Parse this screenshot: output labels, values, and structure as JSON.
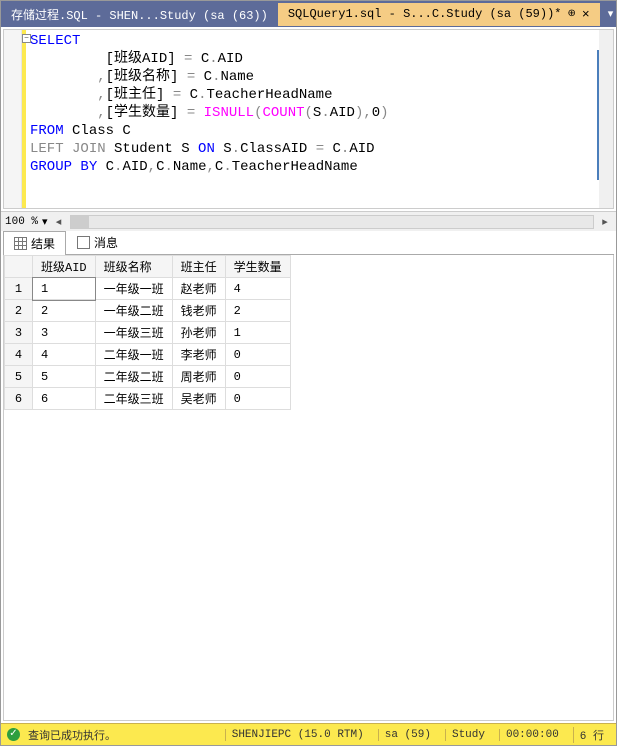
{
  "tabs": {
    "inactive_label": "存储过程.SQL - SHEN...Study (sa (63))",
    "active_label": "SQLQuery1.sql - S...C.Study (sa (59))*"
  },
  "code": {
    "l1a": "SELECT",
    "l2a": "         [班级AID] ",
    "l2b": "=",
    "l2c": " C",
    "l2d": ".",
    "l2e": "AID",
    "l3a": "        ",
    "l3b": ",",
    "l3c": "[班级名称] ",
    "l3d": "=",
    "l3e": " C",
    "l3f": ".",
    "l3g": "Name",
    "l4a": "        ",
    "l4b": ",",
    "l4c": "[班主任] ",
    "l4d": "=",
    "l4e": " C",
    "l4f": ".",
    "l4g": "TeacherHeadName",
    "l5a": "        ",
    "l5b": ",",
    "l5c": "[学生数量] ",
    "l5d": "=",
    "l5e": " ",
    "l5f": "ISNULL",
    "l5g": "(",
    "l5h": "COUNT",
    "l5i": "(",
    "l5j": "S",
    "l5k": ".",
    "l5l": "AID",
    "l5m": ")",
    "l5n": ",",
    "l5o": "0",
    "l5p": ")",
    "l6a": "FROM",
    "l6b": " Class C",
    "l7a": "LEFT",
    "l7b": " ",
    "l7c": "JOIN",
    "l7d": " Student S ",
    "l7e": "ON",
    "l7f": " S",
    "l7g": ".",
    "l7h": "ClassAID ",
    "l7i": "=",
    "l7j": " C",
    "l7k": ".",
    "l7l": "AID",
    "l8a": "GROUP",
    "l8b": " ",
    "l8c": "BY",
    "l8d": " C",
    "l8e": ".",
    "l8f": "AID",
    "l8g": ",",
    "l8h": "C",
    "l8i": ".",
    "l8j": "Name",
    "l8k": ",",
    "l8l": "C",
    "l8m": ".",
    "l8n": "TeacherHeadName"
  },
  "zoom": {
    "pct": "100 %"
  },
  "result_tabs": {
    "results": "结果",
    "messages": "消息"
  },
  "grid": {
    "columns": [
      "班级AID",
      "班级名称",
      "班主任",
      "学生数量"
    ],
    "rows": [
      [
        "1",
        "一年级一班",
        "赵老师",
        "4"
      ],
      [
        "2",
        "一年级二班",
        "钱老师",
        "2"
      ],
      [
        "3",
        "一年级三班",
        "孙老师",
        "1"
      ],
      [
        "4",
        "二年级一班",
        "李老师",
        "0"
      ],
      [
        "5",
        "二年级二班",
        "周老师",
        "0"
      ],
      [
        "6",
        "二年级三班",
        "吴老师",
        "0"
      ]
    ]
  },
  "status": {
    "msg": "查询已成功执行。",
    "server": "SHENJIEPC (15.0 RTM)",
    "user": "sa (59)",
    "db": "Study",
    "time": "00:00:00",
    "rows": "6 行"
  }
}
